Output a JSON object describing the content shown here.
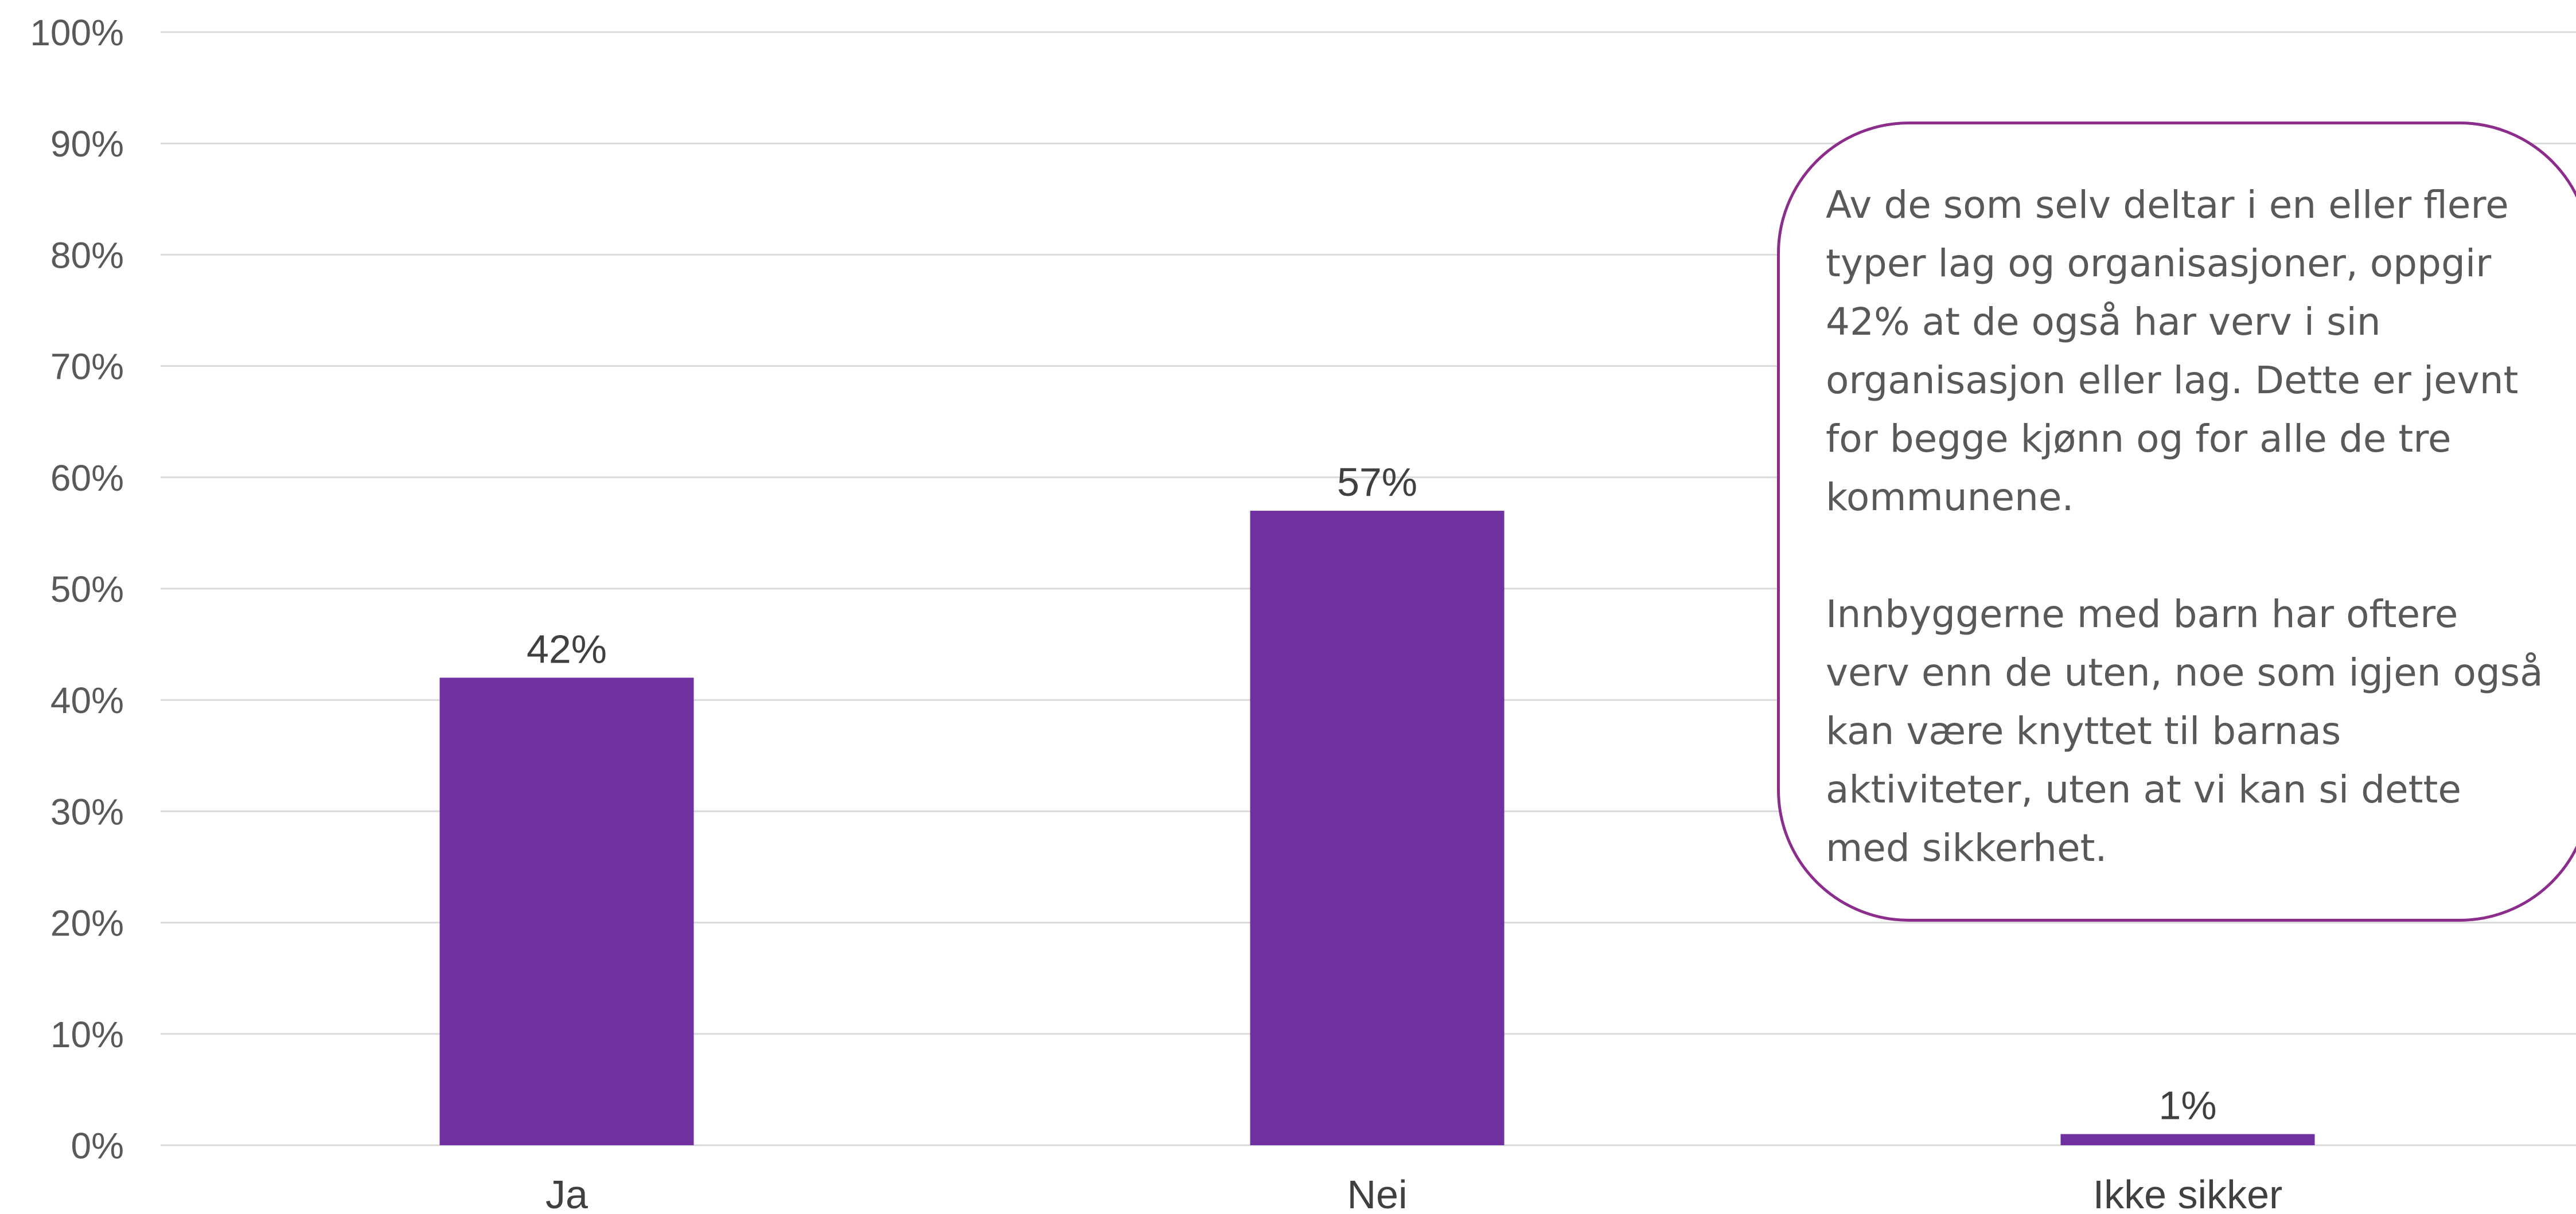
{
  "chart_data": {
    "type": "bar",
    "categories": [
      "Ja",
      "Nei",
      "Ikke sikker"
    ],
    "values": [
      42,
      57,
      1
    ],
    "data_labels": [
      "42%",
      "57%",
      "1%"
    ],
    "title": "",
    "xlabel": "",
    "ylabel": "",
    "ylim": [
      0,
      100
    ],
    "y_ticks": [
      "0%",
      "10%",
      "20%",
      "30%",
      "40%",
      "50%",
      "60%",
      "70%",
      "80%",
      "90%",
      "100%"
    ],
    "grid": true,
    "legend": "none",
    "bar_color": "#7030a0",
    "gridline_color": "#d9d9d9"
  },
  "callout": {
    "border_color": "#8b2d8b",
    "paragraph_1_lines": [
      "Av de som selv deltar i en eller flere",
      "typer lag og organisasjoner, oppgir",
      "42% at de også har verv i sin",
      "organisasjon eller lag. Dette er jevnt",
      "for begge kjønn og for alle de tre",
      "kommunene."
    ],
    "paragraph_2_lines": [
      "Innbyggerne med barn har oftere",
      "verv enn de uten, noe som igjen også",
      "kan være knyttet til barnas",
      "aktiviteter, uten at vi kan si dette",
      "med sikkerhet."
    ]
  }
}
